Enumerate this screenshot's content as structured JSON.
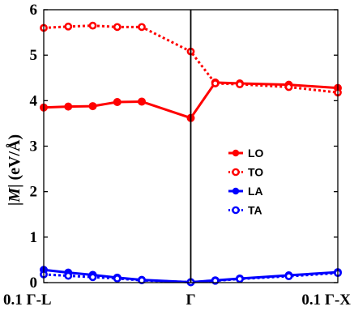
{
  "chart_data": {
    "type": "line",
    "title": "",
    "xlabel": "",
    "ylabel_prefix": "|",
    "ylabel_var": "M",
    "ylabel_suffix": "| (eV/Å)",
    "x_tick_labels": [
      "0.1 Γ-L",
      "Γ",
      "0.1 Γ-X"
    ],
    "x_tick_positions": [
      0,
      6,
      12
    ],
    "xlim": [
      0,
      12
    ],
    "ylim": [
      0,
      6
    ],
    "yticks": [
      0,
      1,
      2,
      3,
      4,
      5,
      6
    ],
    "vline_at": 6,
    "legend_position": "center-right",
    "series": [
      {
        "name": "LO",
        "color": "#ff0000",
        "style": "solid",
        "x": [
          0,
          1,
          2,
          3,
          4,
          6,
          7,
          8,
          10,
          12
        ],
        "values": [
          3.85,
          3.87,
          3.88,
          3.97,
          3.98,
          3.62,
          4.4,
          4.38,
          4.35,
          4.28
        ]
      },
      {
        "name": "TO",
        "color": "#ff0000",
        "style": "dotted",
        "x": [
          0,
          1,
          2,
          3,
          4,
          6,
          7,
          8,
          10,
          12
        ],
        "values": [
          5.6,
          5.63,
          5.65,
          5.62,
          5.62,
          5.08,
          4.38,
          4.36,
          4.3,
          4.18
        ]
      },
      {
        "name": "LA",
        "color": "#0000ff",
        "style": "solid",
        "x": [
          0,
          1,
          2,
          3,
          4,
          6,
          7,
          8,
          10,
          12
        ],
        "values": [
          0.28,
          0.22,
          0.17,
          0.11,
          0.06,
          0.01,
          0.05,
          0.09,
          0.16,
          0.23
        ]
      },
      {
        "name": "TA",
        "color": "#0000ff",
        "style": "dotted",
        "x": [
          0,
          1,
          2,
          3,
          4,
          6,
          7,
          8,
          10,
          12
        ],
        "values": [
          0.18,
          0.15,
          0.12,
          0.09,
          0.05,
          0.01,
          0.04,
          0.08,
          0.14,
          0.21
        ]
      }
    ]
  }
}
